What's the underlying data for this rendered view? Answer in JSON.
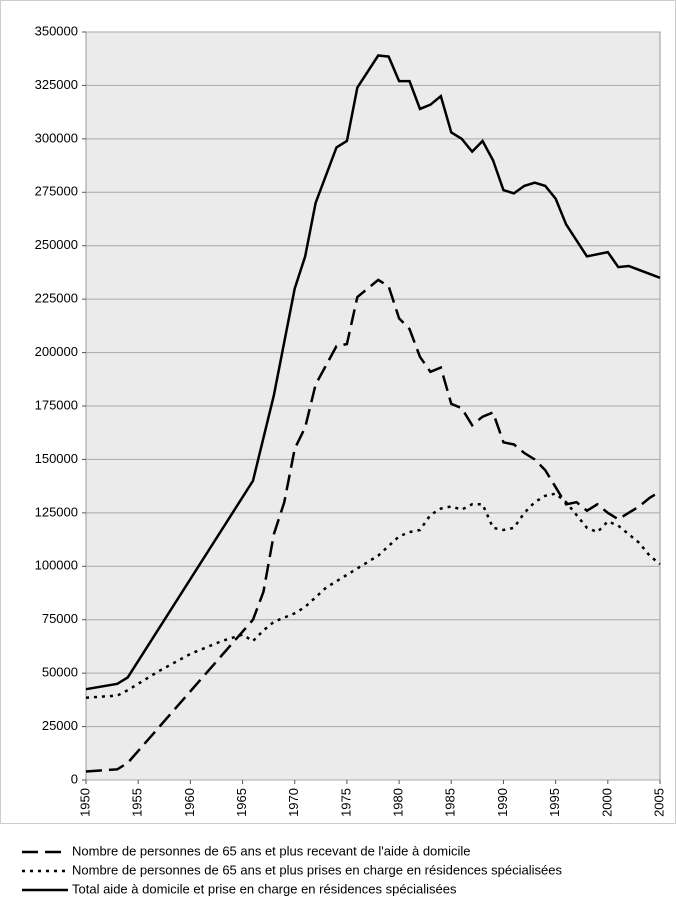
{
  "chart_data": {
    "type": "line",
    "xlim": [
      1950,
      2005
    ],
    "xticks": [
      1950,
      1955,
      1960,
      1965,
      1970,
      1975,
      1980,
      1985,
      1990,
      1995,
      2000,
      2005
    ],
    "ylim": [
      0,
      350000
    ],
    "yticks": [
      0,
      25000,
      50000,
      75000,
      100000,
      125000,
      150000,
      175000,
      200000,
      225000,
      250000,
      275000,
      300000,
      325000,
      350000
    ],
    "grid": true,
    "legend": "bottom",
    "series": [
      {
        "name": "Nombre de personnes de 65 ans et plus recevant de l'aide à domicile",
        "color": "#000000",
        "style": "dashed",
        "x": [
          1950,
          1953,
          1954,
          1966,
          1967,
          1968,
          1969,
          1970,
          1971,
          1972,
          1974,
          1975,
          1976,
          1978,
          1979,
          1980,
          1981,
          1982,
          1983,
          1984,
          1985,
          1986,
          1987,
          1988,
          1989,
          1990,
          1991,
          1992,
          1993,
          1994,
          1995,
          1996,
          1997,
          1998,
          1999,
          2000,
          2001,
          2002,
          2003,
          2004,
          2005
        ],
        "values": [
          4000,
          5000,
          8000,
          75000,
          88000,
          115000,
          130000,
          155000,
          165000,
          185000,
          203000,
          204000,
          226000,
          234000,
          231000,
          216000,
          211000,
          198000,
          191000,
          193000,
          176000,
          174000,
          166000,
          170000,
          172000,
          158000,
          157000,
          153000,
          150000,
          145000,
          137000,
          129000,
          130000,
          126000,
          129000,
          125000,
          122000,
          125000,
          128000,
          132000,
          135000
        ]
      },
      {
        "name": "Nombre de personnes de 65 ans et plus prises en charge en résidences spécialisées",
        "color": "#000000",
        "style": "dotted",
        "x": [
          1950,
          1953,
          1954,
          1957,
          1960,
          1963,
          1965,
          1966,
          1967,
          1968,
          1970,
          1971,
          1973,
          1975,
          1978,
          1980,
          1981,
          1982,
          1983,
          1984,
          1985,
          1986,
          1987,
          1988,
          1989,
          1990,
          1991,
          1992,
          1993,
          1994,
          1995,
          1996,
          1997,
          1998,
          1999,
          2000,
          2001,
          2002,
          2003,
          2004,
          2005
        ],
        "values": [
          38500,
          39500,
          42000,
          51000,
          59000,
          65000,
          68000,
          65000,
          70000,
          74000,
          78000,
          81000,
          90000,
          96000,
          105000,
          114000,
          116000,
          117000,
          124000,
          127000,
          128000,
          126500,
          129000,
          129000,
          118000,
          117000,
          118000,
          125000,
          130000,
          133000,
          134000,
          130000,
          124000,
          118000,
          116000,
          121000,
          119000,
          115000,
          111000,
          105000,
          101000
        ]
      },
      {
        "name": "Total aide à domicile et prise en charge en résidences spécialisées",
        "color": "#000000",
        "style": "solid",
        "x": [
          1950,
          1953,
          1954,
          1966,
          1968,
          1970,
          1971,
          1972,
          1974,
          1975,
          1976,
          1978,
          1979,
          1980,
          1981,
          1982,
          1983,
          1984,
          1985,
          1986,
          1987,
          1988,
          1989,
          1990,
          1991,
          1992,
          1993,
          1994,
          1995,
          1996,
          1998,
          2000,
          2001,
          2002,
          2005
        ],
        "values": [
          42500,
          45000,
          48000,
          140000,
          180000,
          230000,
          245000,
          270000,
          296000,
          299000,
          324000,
          339000,
          338500,
          327000,
          327000,
          314000,
          316000,
          320000,
          303000,
          300000,
          294000,
          299000,
          290000,
          276000,
          274500,
          278000,
          279500,
          278000,
          272000,
          260000,
          245000,
          247000,
          240000,
          240500,
          235000
        ]
      }
    ]
  }
}
